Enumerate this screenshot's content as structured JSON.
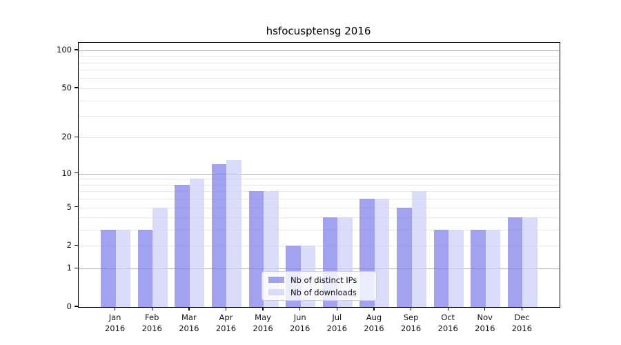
{
  "title": "hsfocusptensg 2016",
  "chart_data": {
    "type": "bar",
    "title": "hsfocusptensg 2016",
    "categories": [
      "Jan",
      "Feb",
      "Mar",
      "Apr",
      "May",
      "Jun",
      "Jul",
      "Aug",
      "Sep",
      "Oct",
      "Nov",
      "Dec"
    ],
    "category_year": "2016",
    "series": [
      {
        "name": "Nb of distinct IPs",
        "color": "rgba(122,122,234,0.7)",
        "values": [
          3,
          3,
          8,
          12,
          7,
          2,
          4,
          6,
          5,
          3,
          3,
          4
        ]
      },
      {
        "name": "Nb of downloads",
        "color": "rgba(204,204,248,0.7)",
        "values": [
          3,
          5,
          9,
          13,
          7,
          2,
          4,
          6,
          7,
          3,
          3,
          4
        ]
      }
    ],
    "yscale": "log1p",
    "ylim": [
      0,
      114.5
    ],
    "yticks": [
      0,
      1,
      2,
      5,
      10,
      20,
      50,
      100
    ],
    "major_gridlines": [
      1,
      10,
      100
    ],
    "minor_gridlines": [
      2,
      3,
      4,
      5,
      6,
      7,
      8,
      9,
      20,
      30,
      40,
      50,
      60,
      70,
      80,
      90
    ],
    "grid": "on",
    "legend_position": "lower center",
    "colors": {
      "bar_dark": "rgba(122,122,234,0.7)",
      "bar_light": "rgba(204,204,248,0.7)",
      "major_grid": "#b4b4b4",
      "minor_grid": "#e9e9e9",
      "axis": "#000000",
      "text": "#111111"
    }
  }
}
